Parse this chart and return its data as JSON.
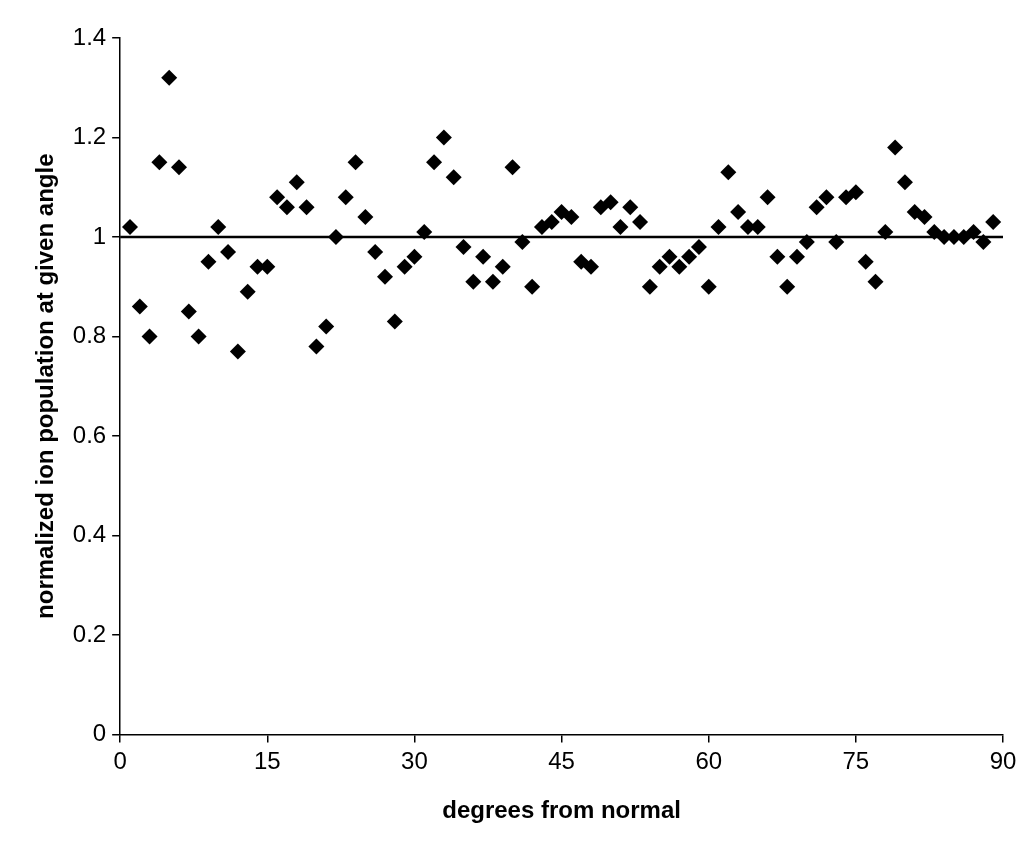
{
  "chart_data": {
    "type": "scatter",
    "xlabel": "degrees from normal",
    "ylabel": "normalized ion population at given angle",
    "x": [
      1,
      2,
      3,
      4,
      5,
      6,
      7,
      8,
      9,
      10,
      11,
      12,
      13,
      14,
      15,
      16,
      17,
      18,
      19,
      20,
      21,
      22,
      23,
      24,
      25,
      26,
      27,
      28,
      29,
      30,
      31,
      32,
      33,
      34,
      35,
      36,
      37,
      38,
      39,
      40,
      41,
      42,
      43,
      44,
      45,
      46,
      47,
      48,
      49,
      50,
      51,
      52,
      53,
      54,
      55,
      56,
      57,
      58,
      59,
      60,
      61,
      62,
      63,
      64,
      65,
      66,
      67,
      68,
      69,
      70,
      71,
      72,
      73,
      74,
      75,
      76,
      77,
      78,
      79,
      80,
      81,
      82,
      83,
      84,
      85,
      86,
      87,
      88,
      89
    ],
    "series": [
      {
        "color": "#000000",
        "values": [
          1.02,
          0.86,
          0.8,
          1.15,
          1.32,
          1.14,
          0.85,
          0.8,
          0.95,
          1.02,
          0.97,
          0.77,
          0.89,
          0.94,
          0.94,
          1.08,
          1.06,
          1.11,
          1.06,
          0.78,
          0.82,
          1.0,
          1.08,
          1.15,
          1.04,
          0.97,
          0.92,
          0.83,
          0.94,
          0.96,
          1.01,
          1.15,
          1.2,
          1.12,
          0.98,
          0.91,
          0.96,
          0.91,
          0.94,
          1.14,
          0.99,
          0.9,
          1.02,
          1.03,
          1.05,
          1.04,
          0.95,
          0.94,
          1.06,
          1.07,
          1.02,
          1.06,
          1.03,
          0.9,
          0.94,
          0.96,
          0.94,
          0.96,
          0.98,
          0.9,
          1.02,
          1.13,
          1.05,
          1.02,
          1.02,
          1.08,
          0.96,
          0.9,
          0.96,
          0.99,
          1.06,
          1.08,
          0.99,
          1.08,
          1.09,
          0.95,
          0.91,
          1.01,
          1.18,
          1.11,
          1.05,
          1.04,
          1.01,
          1.0,
          1.0,
          1.0,
          1.01,
          0.99,
          1.03
        ]
      }
    ],
    "xlim": [
      0,
      90
    ],
    "xticks": [
      0,
      15,
      30,
      45,
      60,
      75,
      90
    ],
    "ylim": [
      0,
      1.4
    ],
    "yticks": [
      0,
      0.2,
      0.4,
      0.6,
      0.8,
      1,
      1.2,
      1.4
    ],
    "ref_lines": [
      {
        "axis": "y",
        "value": 1,
        "color": "#000000"
      }
    ],
    "marker": "diamond",
    "legend": false
  }
}
